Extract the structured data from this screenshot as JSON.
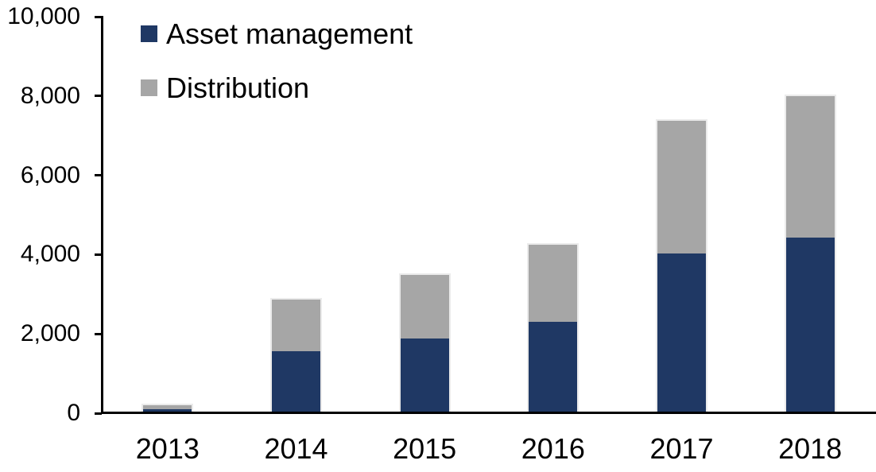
{
  "chart_data": {
    "type": "bar",
    "stacked": true,
    "categories": [
      "2013",
      "2014",
      "2015",
      "2016",
      "2017",
      "2018"
    ],
    "series": [
      {
        "name": "Asset management",
        "color": "#1F3864",
        "values": [
          100,
          1570,
          1890,
          2310,
          4030,
          4420
        ]
      },
      {
        "name": "Distribution",
        "color": "#A6A6A6",
        "values": [
          100,
          1290,
          1590,
          1930,
          3350,
          3580
        ]
      }
    ],
    "totals": [
      200,
      2860,
      3480,
      4240,
      7380,
      8000
    ],
    "ylim": [
      0,
      10000
    ],
    "y_ticks": [
      0,
      2000,
      4000,
      6000,
      8000,
      10000
    ],
    "y_tick_labels": [
      "0",
      "2,000",
      "4,000",
      "6,000",
      "8,000",
      "10,000"
    ],
    "legend_position": "top-left",
    "grid": false,
    "axis_color": "#000000",
    "background_color": "#FFFFFF",
    "text_color": "#000000"
  }
}
